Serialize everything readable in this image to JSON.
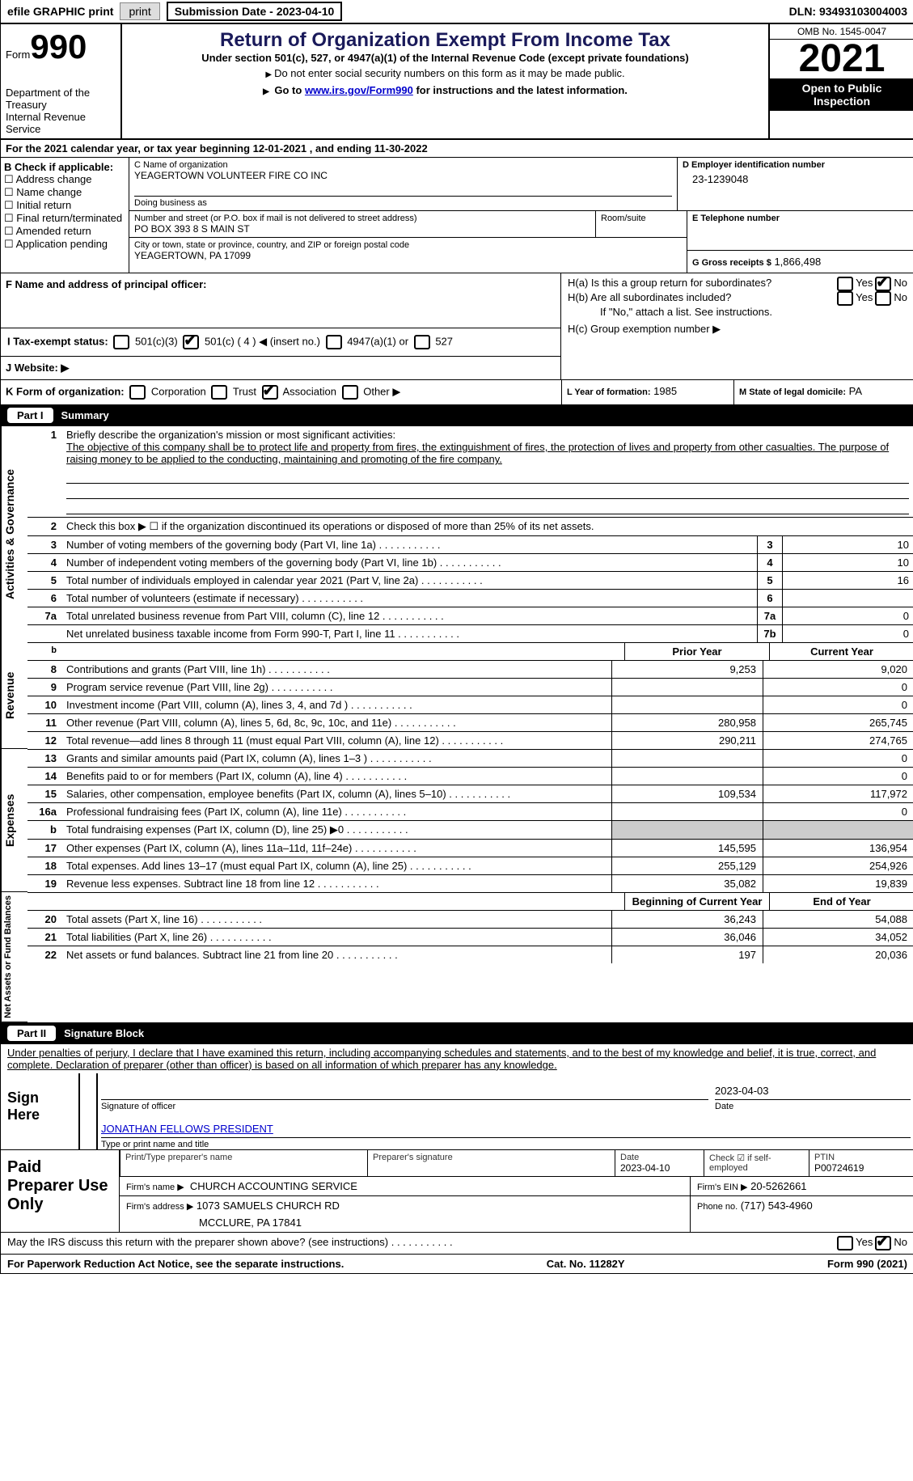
{
  "topbar": {
    "efile": "efile GRAPHIC print",
    "sub_date_label": "Submission Date - 2023-04-10",
    "dln_label": "DLN: 93493103004003"
  },
  "header": {
    "form_word": "Form",
    "form_num": "990",
    "dept": "Department of the Treasury",
    "irs": "Internal Revenue Service",
    "title": "Return of Organization Exempt From Income Tax",
    "section": "Under section 501(c), 527, or 4947(a)(1) of the Internal Revenue Code (except private foundations)",
    "note1": "Do not enter social security numbers on this form as it may be made public.",
    "note2_pre": "Go to ",
    "note2_link": "www.irs.gov/Form990",
    "note2_post": " for instructions and the latest information.",
    "omb": "OMB No. 1545-0047",
    "year": "2021",
    "open": "Open to Public Inspection"
  },
  "lineA": "For the 2021 calendar year, or tax year beginning 12-01-2021   , and ending 11-30-2022",
  "boxB": {
    "label": "B Check if applicable:",
    "items": [
      "Address change",
      "Name change",
      "Initial return",
      "Final return/terminated",
      "Amended return",
      "Application pending"
    ]
  },
  "boxC": {
    "label_c": "C Name of organization",
    "org": "YEAGERTOWN VOLUNTEER FIRE CO INC",
    "dba_label": "Doing business as",
    "addr_label": "Number and street (or P.O. box if mail is not delivered to street address)",
    "room_label": "Room/suite",
    "addr": "PO BOX 393 8 S MAIN ST",
    "city_label": "City or town, state or province, country, and ZIP or foreign postal code",
    "city": "YEAGERTOWN, PA  17099"
  },
  "boxD": {
    "label": "D Employer identification number",
    "val": "23-1239048"
  },
  "boxE": {
    "label": "E Telephone number"
  },
  "boxG": {
    "label": "G Gross receipts $",
    "val": "1,866,498"
  },
  "boxF": {
    "label": "F  Name and address of principal officer:"
  },
  "boxH": {
    "a": "H(a)  Is this a group return for subordinates?",
    "b": "H(b)  Are all subordinates included?",
    "b_note": "If \"No,\" attach a list. See instructions.",
    "c": "H(c)  Group exemption number ▶",
    "yes": "Yes",
    "no": "No"
  },
  "boxI": {
    "label": "I   Tax-exempt status:",
    "o1": "501(c)(3)",
    "o2": "501(c) ( 4 ) ◀ (insert no.)",
    "o3": "4947(a)(1) or",
    "o4": "527"
  },
  "boxJ": {
    "label": "J   Website: ▶"
  },
  "boxK": {
    "label": "K Form of organization:",
    "o1": "Corporation",
    "o2": "Trust",
    "o3": "Association",
    "o4": "Other ▶"
  },
  "boxL": {
    "label": "L Year of formation:",
    "val": "1985"
  },
  "boxM": {
    "label": "M State of legal domicile:",
    "val": "PA"
  },
  "part1": {
    "title": "Summary",
    "part": "Part I"
  },
  "summary": {
    "section_labels": [
      "Activities & Governance",
      "Revenue",
      "Expenses",
      "Net Assets or Fund Balances"
    ],
    "briefly_label": "Briefly describe the organization's mission or most significant activities:",
    "briefly": "The objective of this company shall be to protect life and property from fires, the extinguishment of fires, the protection of lives and property from other casualties. The purpose of raising money to be applied to the conducting, maintaining and promoting of the fire company.",
    "line2": "Check this box ▶ ☐ if the organization discontinued its operations or disposed of more than 25% of its net assets.",
    "lines_single": [
      {
        "n": "3",
        "label": "Number of voting members of the governing body (Part VI, line 1a)",
        "box": "3",
        "val": "10"
      },
      {
        "n": "4",
        "label": "Number of independent voting members of the governing body (Part VI, line 1b)",
        "box": "4",
        "val": "10"
      },
      {
        "n": "5",
        "label": "Total number of individuals employed in calendar year 2021 (Part V, line 2a)",
        "box": "5",
        "val": "16"
      },
      {
        "n": "6",
        "label": "Total number of volunteers (estimate if necessary)",
        "box": "6",
        "val": ""
      },
      {
        "n": "7a",
        "label": "Total unrelated business revenue from Part VIII, column (C), line 12",
        "box": "7a",
        "val": "0"
      },
      {
        "n": "",
        "label": "Net unrelated business taxable income from Form 990-T, Part I, line 11",
        "box": "7b",
        "val": "0"
      }
    ],
    "col_head_b": "b",
    "prior": "Prior Year",
    "current": "Current Year",
    "amt_rows": [
      {
        "n": "8",
        "label": "Contributions and grants (Part VIII, line 1h)",
        "p": "9,253",
        "c": "9,020"
      },
      {
        "n": "9",
        "label": "Program service revenue (Part VIII, line 2g)",
        "p": "",
        "c": "0"
      },
      {
        "n": "10",
        "label": "Investment income (Part VIII, column (A), lines 3, 4, and 7d )",
        "p": "",
        "c": "0"
      },
      {
        "n": "11",
        "label": "Other revenue (Part VIII, column (A), lines 5, 6d, 8c, 9c, 10c, and 11e)",
        "p": "280,958",
        "c": "265,745"
      },
      {
        "n": "12",
        "label": "Total revenue—add lines 8 through 11 (must equal Part VIII, column (A), line 12)",
        "p": "290,211",
        "c": "274,765"
      },
      {
        "n": "13",
        "label": "Grants and similar amounts paid (Part IX, column (A), lines 1–3 )",
        "p": "",
        "c": "0"
      },
      {
        "n": "14",
        "label": "Benefits paid to or for members (Part IX, column (A), line 4)",
        "p": "",
        "c": "0"
      },
      {
        "n": "15",
        "label": "Salaries, other compensation, employee benefits (Part IX, column (A), lines 5–10)",
        "p": "109,534",
        "c": "117,972"
      },
      {
        "n": "16a",
        "label": "Professional fundraising fees (Part IX, column (A), line 11e)",
        "p": "",
        "c": "0"
      },
      {
        "n": "b",
        "label": "Total fundraising expenses (Part IX, column (D), line 25) ▶0",
        "p": "[shade]",
        "c": "[shade]"
      },
      {
        "n": "17",
        "label": "Other expenses (Part IX, column (A), lines 11a–11d, 11f–24e)",
        "p": "145,595",
        "c": "136,954"
      },
      {
        "n": "18",
        "label": "Total expenses. Add lines 13–17 (must equal Part IX, column (A), line 25)",
        "p": "255,129",
        "c": "254,926"
      },
      {
        "n": "19",
        "label": "Revenue less expenses. Subtract line 18 from line 12",
        "p": "35,082",
        "c": "19,839"
      }
    ],
    "begin": "Beginning of Current Year",
    "end": "End of Year",
    "na_rows": [
      {
        "n": "20",
        "label": "Total assets (Part X, line 16)",
        "p": "36,243",
        "c": "54,088"
      },
      {
        "n": "21",
        "label": "Total liabilities (Part X, line 26)",
        "p": "36,046",
        "c": "34,052"
      },
      {
        "n": "22",
        "label": "Net assets or fund balances. Subtract line 21 from line 20",
        "p": "197",
        "c": "20,036"
      }
    ]
  },
  "part2": {
    "part": "Part II",
    "title": "Signature Block"
  },
  "sig": {
    "jurat": "Under penalties of perjury, I declare that I have examined this return, including accompanying schedules and statements, and to the best of my knowledge and belief, it is true, correct, and complete. Declaration of preparer (other than officer) is based on all information of which preparer has any knowledge.",
    "sign_here": "Sign Here",
    "date": "2023-04-03",
    "sig_officer": "Signature of officer",
    "date_lbl": "Date",
    "name": "JONATHAN FELLOWS PRESIDENT",
    "name_lbl": "Type or print name and title"
  },
  "prep": {
    "title": "Paid Preparer Use Only",
    "print_lbl": "Print/Type preparer's name",
    "sig_lbl": "Preparer's signature",
    "date_lbl": "Date",
    "date": "2023-04-10",
    "check_lbl": "Check ☑ if self-employed",
    "ptin_lbl": "PTIN",
    "ptin": "P00724619",
    "firm_name_lbl": "Firm's name  ▶",
    "firm_name": "CHURCH ACCOUNTING SERVICE",
    "firm_ein_lbl": "Firm's EIN ▶",
    "firm_ein": "20-5262661",
    "firm_addr_lbl": "Firm's address ▶",
    "firm_addr": "1073 SAMUELS CHURCH RD",
    "firm_city": "MCCLURE, PA  17841",
    "phone_lbl": "Phone no.",
    "phone": "(717) 543-4960"
  },
  "footer": {
    "discuss": "May the IRS discuss this return with the preparer shown above? (see instructions)",
    "yes": "Yes",
    "no": "No",
    "paperwork": "For Paperwork Reduction Act Notice, see the separate instructions.",
    "cat": "Cat. No. 11282Y",
    "form": "Form 990 (2021)"
  }
}
